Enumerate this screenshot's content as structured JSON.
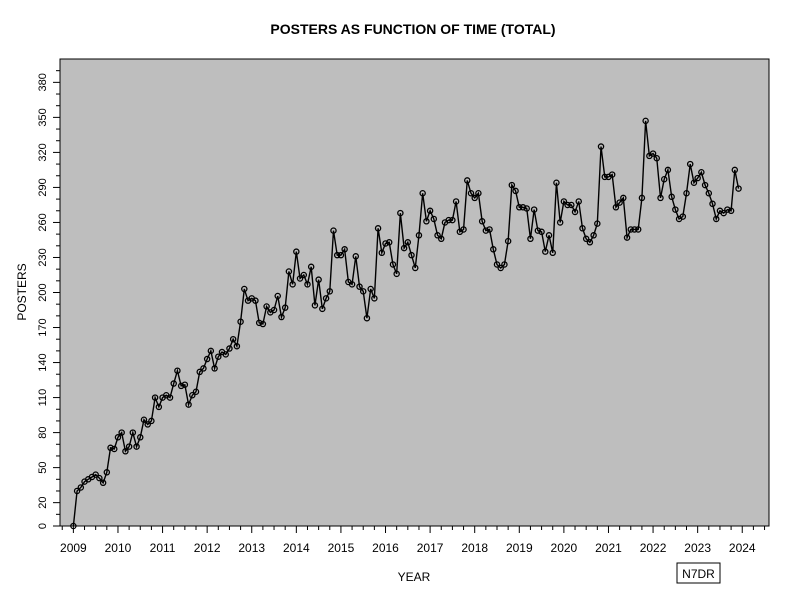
{
  "chart_data": {
    "type": "line",
    "title": "POSTERS AS FUNCTION OF TIME (TOTAL)",
    "xlabel": "YEAR",
    "ylabel": "POSTERS",
    "watermark": "N7DR",
    "xlim": [
      2008.7,
      2024.6
    ],
    "ylim": [
      0,
      400
    ],
    "x_ticks": [
      2009,
      2010,
      2011,
      2012,
      2013,
      2014,
      2015,
      2016,
      2017,
      2018,
      2019,
      2020,
      2021,
      2022,
      2023,
      2024
    ],
    "y_ticks": [
      0,
      20,
      50,
      80,
      110,
      140,
      170,
      200,
      230,
      260,
      290,
      320,
      350,
      380
    ],
    "grid": false,
    "background_color": "#bebebe",
    "line_color": "#000000",
    "series": [
      {
        "x": [
          2009.0,
          2009.083,
          2009.167,
          2009.25,
          2009.333,
          2009.417,
          2009.5,
          2009.583,
          2009.667,
          2009.75,
          2009.833,
          2009.917,
          2010.0,
          2010.083,
          2010.167,
          2010.25,
          2010.333,
          2010.417,
          2010.5,
          2010.583,
          2010.667,
          2010.75,
          2010.833,
          2010.917,
          2011.0,
          2011.083,
          2011.167,
          2011.25,
          2011.333,
          2011.417,
          2011.5,
          2011.583,
          2011.667,
          2011.75,
          2011.833,
          2011.917,
          2012.0,
          2012.083,
          2012.167,
          2012.25,
          2012.333,
          2012.417,
          2012.5,
          2012.583,
          2012.667,
          2012.75,
          2012.833,
          2012.917,
          2013.0,
          2013.083,
          2013.167,
          2013.25,
          2013.333,
          2013.417,
          2013.5,
          2013.583,
          2013.667,
          2013.75,
          2013.833,
          2013.917,
          2014.0,
          2014.083,
          2014.167,
          2014.25,
          2014.333,
          2014.417,
          2014.5,
          2014.583,
          2014.667,
          2014.75,
          2014.833,
          2014.917,
          2015.0,
          2015.083,
          2015.167,
          2015.25,
          2015.333,
          2015.417,
          2015.5,
          2015.583,
          2015.667,
          2015.75,
          2015.833,
          2015.917,
          2016.0,
          2016.083,
          2016.167,
          2016.25,
          2016.333,
          2016.417,
          2016.5,
          2016.583,
          2016.667,
          2016.75,
          2016.833,
          2016.917,
          2017.0,
          2017.083,
          2017.167,
          2017.25,
          2017.333,
          2017.417,
          2017.5,
          2017.583,
          2017.667,
          2017.75,
          2017.833,
          2017.917,
          2018.0,
          2018.083,
          2018.167,
          2018.25,
          2018.333,
          2018.417,
          2018.5,
          2018.583,
          2018.667,
          2018.75,
          2018.833,
          2018.917,
          2019.0,
          2019.083,
          2019.167,
          2019.25,
          2019.333,
          2019.417,
          2019.5,
          2019.583,
          2019.667,
          2019.75,
          2019.833,
          2019.917,
          2020.0,
          2020.083,
          2020.167,
          2020.25,
          2020.333,
          2020.417,
          2020.5,
          2020.583,
          2020.667,
          2020.75,
          2020.833,
          2020.917,
          2021.0,
          2021.083,
          2021.167,
          2021.25,
          2021.333,
          2021.417,
          2021.5,
          2021.583,
          2021.667,
          2021.75,
          2021.833,
          2021.917,
          2022.0,
          2022.083,
          2022.167,
          2022.25,
          2022.333,
          2022.417,
          2022.5,
          2022.583,
          2022.667,
          2022.75,
          2022.833,
          2022.917,
          2023.0,
          2023.083,
          2023.167,
          2023.25,
          2023.333,
          2023.417,
          2023.5,
          2023.583,
          2023.667,
          2023.75,
          2023.833,
          2023.917
        ],
        "y": [
          0,
          30,
          33,
          38,
          40,
          42,
          44,
          41,
          37,
          46,
          67,
          66,
          76,
          80,
          64,
          68,
          80,
          68,
          76,
          91,
          87,
          90,
          110,
          102,
          110,
          112,
          110,
          122,
          133,
          120,
          121,
          104,
          112,
          115,
          132,
          135,
          143,
          150,
          135,
          145,
          149,
          147,
          152,
          160,
          154,
          175,
          203,
          193,
          195,
          193,
          174,
          173,
          188,
          183,
          185,
          197,
          179,
          187,
          218,
          207,
          235,
          212,
          215,
          207,
          222,
          189,
          211,
          186,
          195,
          201,
          253,
          232,
          232,
          237,
          209,
          207,
          231,
          205,
          201,
          178,
          203,
          195,
          255,
          234,
          242,
          243,
          224,
          216,
          268,
          238,
          243,
          232,
          221,
          249,
          285,
          261,
          270,
          263,
          249,
          246,
          260,
          262,
          262,
          278,
          252,
          254,
          296,
          285,
          281,
          285,
          261,
          253,
          254,
          237,
          224,
          221,
          224,
          244,
          292,
          287,
          273,
          273,
          272,
          246,
          271,
          253,
          252,
          235,
          249,
          234,
          294,
          260,
          278,
          275,
          275,
          269,
          278,
          255,
          246,
          243,
          249,
          259,
          325,
          299,
          299,
          301,
          273,
          277,
          281,
          247,
          254,
          254,
          254,
          281,
          347,
          317,
          319,
          315,
          281,
          297,
          305,
          282,
          271,
          263,
          265,
          285,
          310,
          294,
          298,
          303,
          292,
          285,
          276,
          263,
          270,
          268,
          271,
          270,
          305,
          289
        ]
      }
    ]
  }
}
